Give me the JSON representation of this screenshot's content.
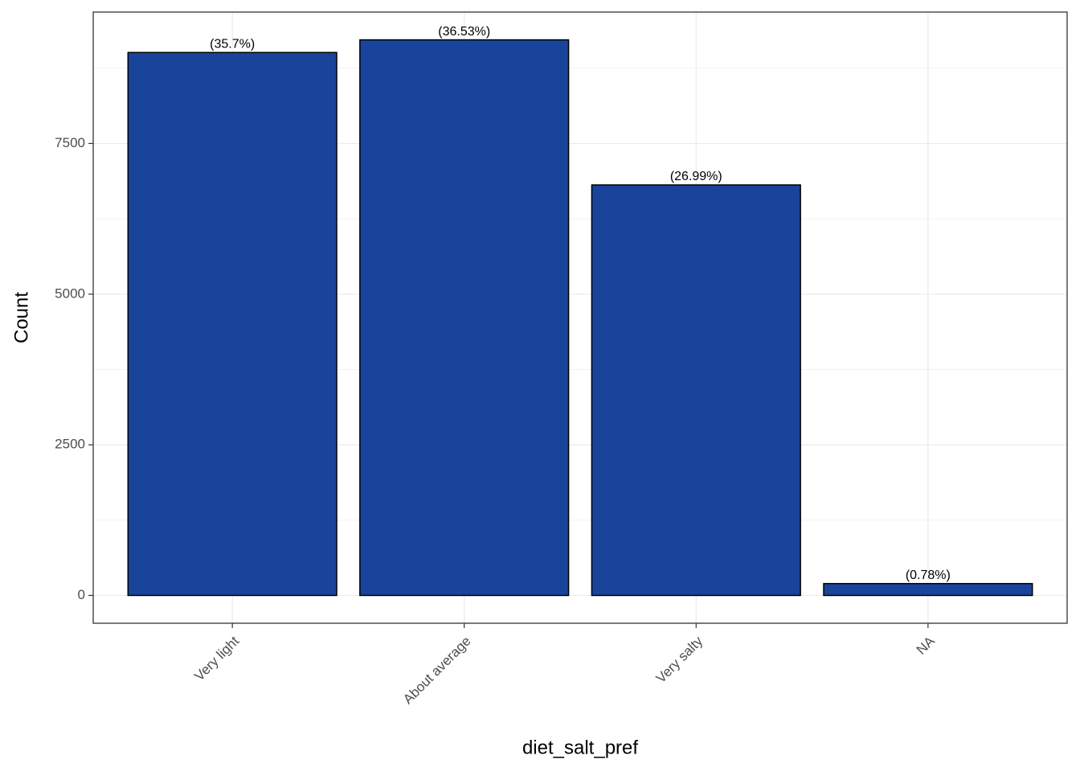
{
  "chart_data": {
    "type": "bar",
    "categories": [
      "Very light",
      "About average",
      "Very salty",
      "NA"
    ],
    "values": [
      9010,
      9220,
      6812,
      197
    ],
    "percent_labels": [
      "(35.7%)",
      "(36.53%)",
      "(26.99%)",
      "(0.78%)"
    ],
    "color": "#19449b",
    "x_label": "diet_salt_pref",
    "y_label": "Count",
    "ylim": [
      -461,
      9681
    ],
    "yticks": [
      0,
      2500,
      5000,
      7500
    ],
    "minor_yticks": [
      1250,
      3750,
      6250,
      8750
    ],
    "grid": true
  }
}
